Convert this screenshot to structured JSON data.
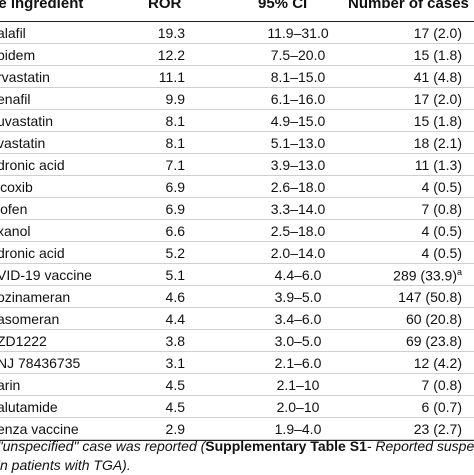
{
  "table": {
    "headers": {
      "ingredient": "ve ingredient",
      "ror": "ROR",
      "ci": "95% CI",
      "cases": "Number of cases"
    },
    "rows": [
      {
        "ingredient": "alafil",
        "ror": "19.3",
        "ci": "11.9–31.0",
        "cases": "17 (2.0)",
        "note": ""
      },
      {
        "ingredient": "pidem",
        "ror": "12.2",
        "ci": "7.5–20.0",
        "cases": "15 (1.8)",
        "note": ""
      },
      {
        "ingredient": "rvastatin",
        "ror": "11.1",
        "ci": "8.1–15.0",
        "cases": "41 (4.8)",
        "note": ""
      },
      {
        "ingredient": "enafil",
        "ror": "9.9",
        "ci": "6.1–16.0",
        "cases": "17 (2.0)",
        "note": ""
      },
      {
        "ingredient": "uvastatin",
        "ror": "8.1",
        "ci": "4.9–15.0",
        "cases": "15 (1.8)",
        "note": ""
      },
      {
        "ingredient": "vastatin",
        "ror": "8.1",
        "ci": "5.1–13.0",
        "cases": "18 (2.1)",
        "note": ""
      },
      {
        "ingredient": "dronic acid",
        "ror": "7.1",
        "ci": "3.9–13.0",
        "cases": "11 (1.3)",
        "note": ""
      },
      {
        "ingredient": "icoxib",
        "ror": "6.9",
        "ci": "2.6–18.0",
        "cases": "4 (0.5)",
        "note": ""
      },
      {
        "ingredient": "lofen",
        "ror": "6.9",
        "ci": "3.3–14.0",
        "cases": "7 (0.8)",
        "note": ""
      },
      {
        "ingredient": "xanol",
        "ror": "6.6",
        "ci": "2.5–18.0",
        "cases": "4 (0.5)",
        "note": ""
      },
      {
        "ingredient": "dronic acid",
        "ror": "5.2",
        "ci": "2.0–14.0",
        "cases": "4 (0.5)",
        "note": ""
      },
      {
        "ingredient": "VID-19 vaccine",
        "ror": "5.1",
        "ci": "4.4–6.0",
        "cases": "289 (33.9)",
        "note": "a"
      },
      {
        "ingredient": "ozinameran",
        "ror": "4.6",
        "ci": "3.9–5.0",
        "cases": "147 (50.8)",
        "note": ""
      },
      {
        "ingredient": "asomeran",
        "ror": "4.4",
        "ci": "3.4–6.0",
        "cases": "60 (20.8)",
        "note": ""
      },
      {
        "ingredient": "ZD1222",
        "ror": "3.8",
        "ci": "3.0–5.0",
        "cases": "69 (23.8)",
        "note": ""
      },
      {
        "ingredient": "NJ 78436735",
        "ror": "3.1",
        "ci": "2.1–6.0",
        "cases": "12 (4.2)",
        "note": ""
      },
      {
        "ingredient": "arin",
        "ror": "4.5",
        "ci": "2.1–10",
        "cases": "7 (0.8)",
        "note": ""
      },
      {
        "ingredient": "alutamide",
        "ror": "4.5",
        "ci": "2.0–10",
        "cases": "6 (0.7)",
        "note": ""
      },
      {
        "ingredient": "enza vaccine",
        "ror": "2.9",
        "ci": "1.9–4.0",
        "cases": "23 (2.7)",
        "note": ""
      }
    ]
  },
  "footnote": {
    "line1_pre": "e \"unspecified\" case was reported (",
    "line1_bold": "Supplementary Table S1",
    "line1_post": "- Reported suspect",
    "line2": "s in patients with TGA)."
  }
}
